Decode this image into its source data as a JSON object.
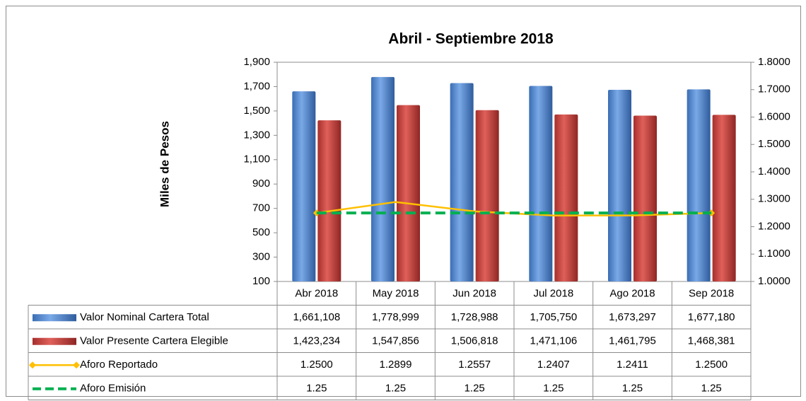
{
  "chart_data": {
    "type": "bar",
    "title": "Abril - Septiembre 2018",
    "y_label": "Miles de Pesos",
    "categories": [
      "Abr 2018",
      "May 2018",
      "Jun 2018",
      "Jul 2018",
      "Ago 2018",
      "Sep 2018"
    ],
    "ylim": [
      100,
      1900
    ],
    "yticks": [
      100,
      300,
      500,
      700,
      900,
      {
        "value": 1100,
        "label": "1,100"
      },
      {
        "value": 1300,
        "label": "1,300"
      },
      {
        "value": 1500,
        "label": "1,500"
      },
      {
        "value": 1700,
        "label": "1,700"
      },
      {
        "value": 1900,
        "label": "1,900"
      }
    ],
    "y2lim": [
      1.0,
      1.8
    ],
    "y2ticks": [
      {
        "value": 1.0,
        "label": "1.0000"
      },
      {
        "value": 1.1,
        "label": "1.1000"
      },
      {
        "value": 1.2,
        "label": "1.2000"
      },
      {
        "value": 1.3,
        "label": "1.3000"
      },
      {
        "value": 1.4,
        "label": "1.4000"
      },
      {
        "value": 1.5,
        "label": "1.5000"
      },
      {
        "value": 1.6,
        "label": "1.6000"
      },
      {
        "value": 1.7,
        "label": "1.7000"
      },
      {
        "value": 1.8,
        "label": "1.8000"
      }
    ],
    "series": [
      {
        "name": "Valor Nominal Cartera Total",
        "type": "bar",
        "color": "#4f86cf",
        "values": [
          1661.108,
          1778.999,
          1728.988,
          1705.75,
          1673.297,
          1677.18
        ],
        "value_labels": [
          "1,661,108",
          "1,778,999",
          "1,728,988",
          "1,705,750",
          "1,673,297",
          "1,677,180"
        ]
      },
      {
        "name": "Valor Presente Cartera Elegible",
        "type": "bar",
        "color": "#c8403c",
        "values": [
          1423.234,
          1547.856,
          1506.818,
          1471.106,
          1461.795,
          1468.381
        ],
        "value_labels": [
          "1,423,234",
          "1,547,856",
          "1,506,818",
          "1,471,106",
          "1,461,795",
          "1,468,381"
        ]
      },
      {
        "name": "Aforo Reportado",
        "type": "line",
        "axis": "y2",
        "color": "#ffc000",
        "values": [
          1.25,
          1.2899,
          1.2557,
          1.2407,
          1.2411,
          1.25
        ],
        "value_labels": [
          "1.2500",
          "1.2899",
          "1.2557",
          "1.2407",
          "1.2411",
          "1.2500"
        ]
      },
      {
        "name": "Aforo Emisión",
        "type": "line",
        "axis": "y2",
        "color": "#00b050",
        "dashed": true,
        "values": [
          1.25,
          1.25,
          1.25,
          1.25,
          1.25,
          1.25
        ]
      }
    ]
  }
}
